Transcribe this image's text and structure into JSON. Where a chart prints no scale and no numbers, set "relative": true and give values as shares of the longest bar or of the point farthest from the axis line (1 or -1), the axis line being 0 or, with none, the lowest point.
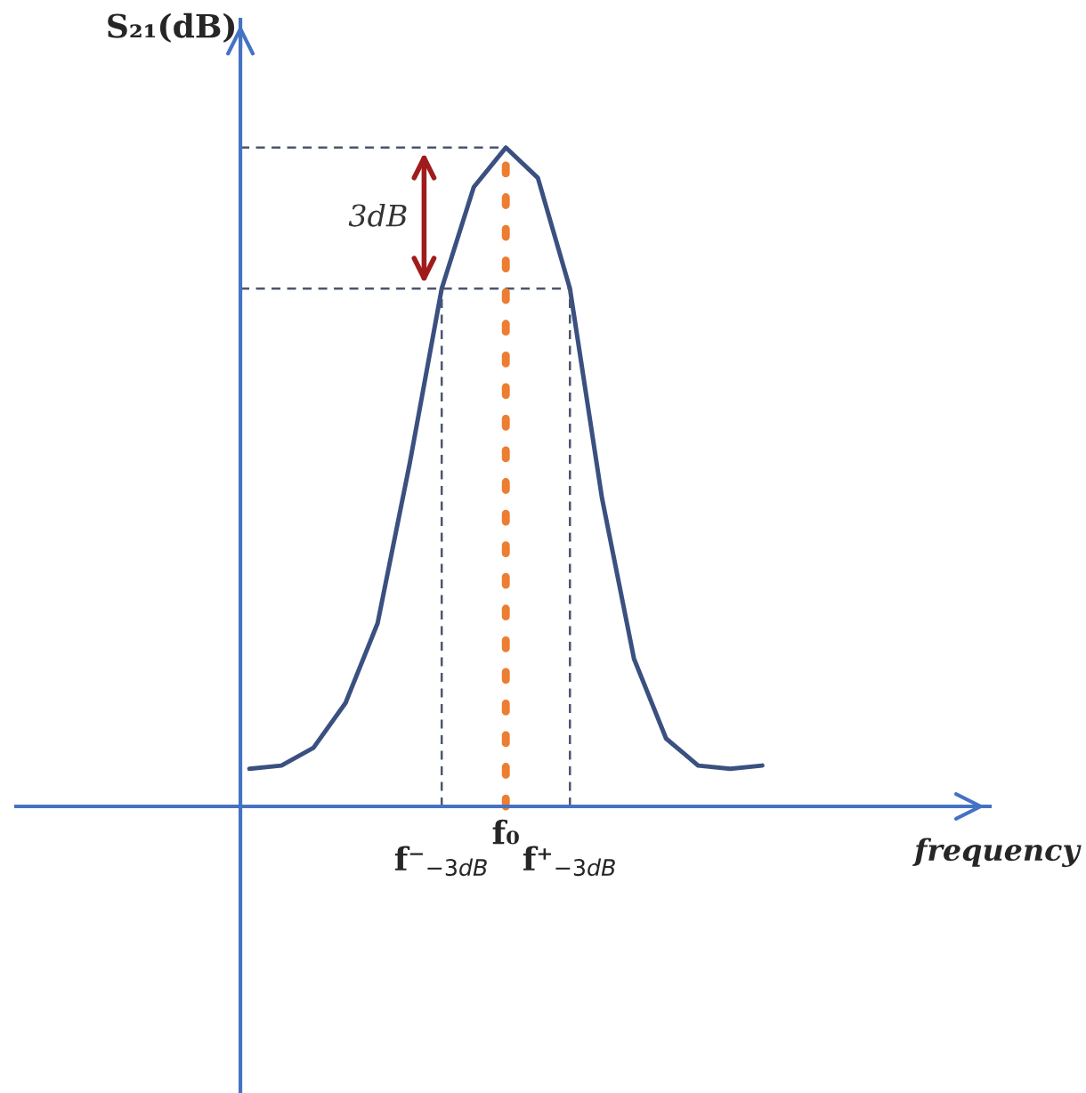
{
  "chart_data": {
    "type": "line",
    "relative": true,
    "ylabel": "S₂₁(dB)",
    "xlabel": "frequency",
    "categories": [
      null,
      null,
      null,
      null,
      null,
      null,
      "f⁻$_{−3dB}$",
      null,
      "f₀",
      null,
      "f⁺$_{−3dB}$",
      null,
      null,
      null,
      null,
      null,
      null
    ],
    "series": [
      {
        "color": "#3a5080",
        "values": [
          0.057,
          0.062,
          0.089,
          0.157,
          0.278,
          0.52,
          0.786,
          0.94,
          1,
          0.954,
          0.786,
          0.468,
          0.224,
          0.103,
          0.062,
          0.057,
          0.062
        ]
      }
    ],
    "ref_lines": [
      {
        "axis": "y",
        "value": 1,
        "color": "#4a5570",
        "line_style": "dashed"
      },
      {
        "axis": "y",
        "value": 0.786,
        "color": "#4a5570",
        "line_style": "dashed"
      },
      {
        "axis": "x",
        "value": "f⁻$_{−3dB}$",
        "color": "#4a5570",
        "line_style": "dashed"
      },
      {
        "axis": "x",
        "value": "f⁺$_{−3dB}$",
        "color": "#4a5570",
        "line_style": "dashed"
      },
      {
        "axis": "x",
        "value": "f₀",
        "color": "#ed7d31",
        "line_style": "dotted"
      }
    ],
    "annotations": [
      "3dB"
    ],
    "marker": "none",
    "line_style": "solid"
  }
}
